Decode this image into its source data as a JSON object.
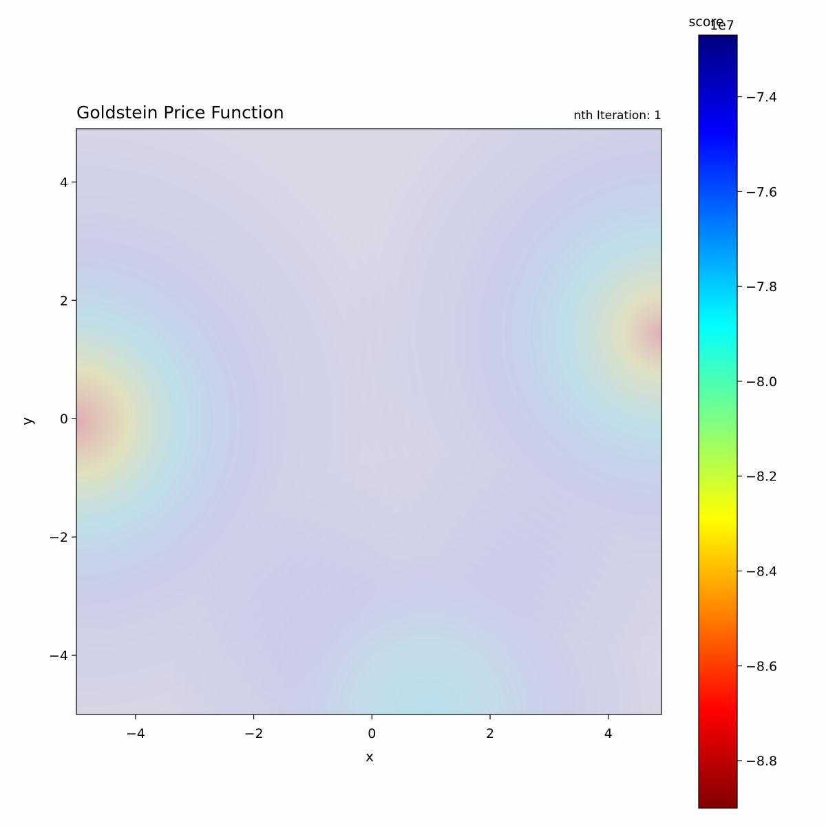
{
  "chart_data": {
    "type": "heatmap",
    "title": "Goldstein Price Function",
    "annotation": "nth Iteration: 1",
    "xlabel": "x",
    "ylabel": "y",
    "xlim": [
      -5,
      4.9
    ],
    "ylim": [
      -5,
      4.9
    ],
    "x_ticks": [
      -4,
      -2,
      0,
      2,
      4
    ],
    "y_ticks": [
      -4,
      -2,
      0,
      2,
      4
    ],
    "x_tick_labels": [
      "−4",
      "−2",
      "0",
      "2",
      "4"
    ],
    "y_tick_labels": [
      "−4",
      "−2",
      "0",
      "2",
      "4"
    ],
    "grid": false,
    "colormap": "jet",
    "heatmap_alpha": 0.15,
    "background_color": "#d9d9e6",
    "colorbar": {
      "label": "score",
      "offset_text": "1e7",
      "range": [
        -8.9,
        -7.27
      ],
      "ticks": [
        -7.4,
        -7.6,
        -7.8,
        -8.0,
        -8.2,
        -8.4,
        -8.6,
        -8.8
      ],
      "tick_labels": [
        "−7.4",
        "−7.6",
        "−7.8",
        "−8.0",
        "−8.2",
        "−8.4",
        "−8.6",
        "−8.8"
      ],
      "colors": [
        "#800000",
        "#ff0000",
        "#ff8000",
        "#ffff00",
        "#80ff80",
        "#00ffff",
        "#0080ff",
        "#0000ff",
        "#000080"
      ]
    }
  }
}
